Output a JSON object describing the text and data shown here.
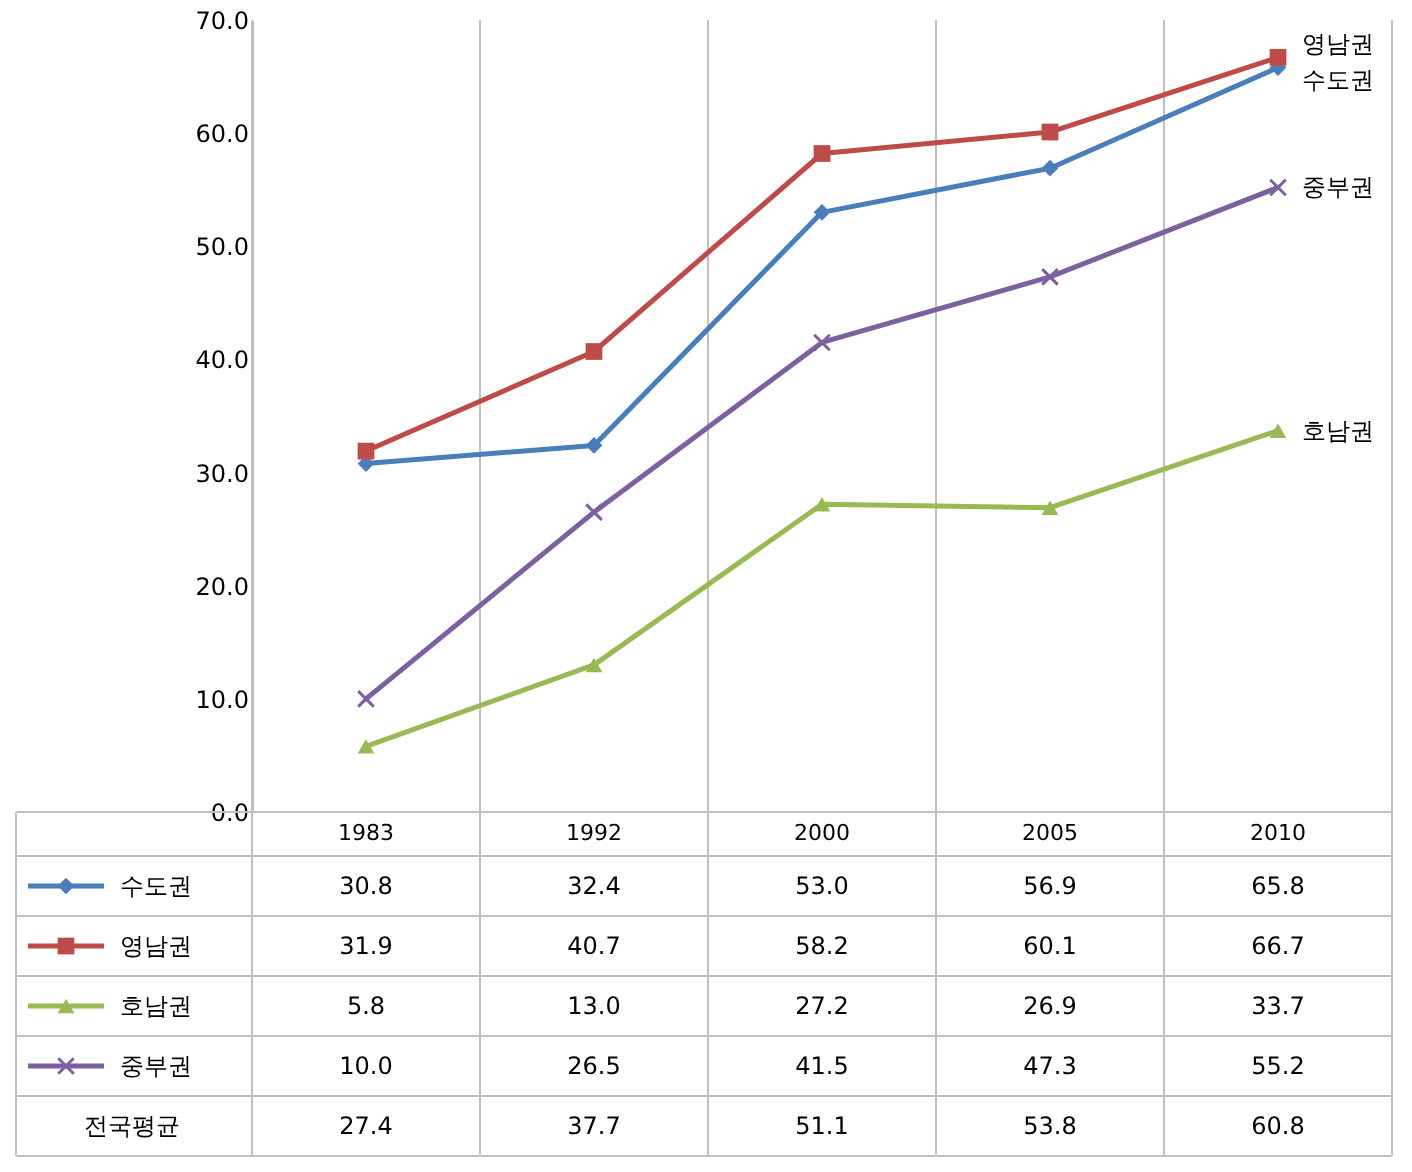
{
  "chart_data": {
    "type": "line",
    "categories": [
      "1983",
      "1992",
      "2000",
      "2005",
      "2010"
    ],
    "ylim": [
      0,
      70
    ],
    "yticks": [
      {
        "value": 0,
        "label": "0.0"
      },
      {
        "value": 10,
        "label": "10.0"
      },
      {
        "value": 20,
        "label": "20.0"
      },
      {
        "value": 30,
        "label": "30.0"
      },
      {
        "value": 40,
        "label": "40.0"
      },
      {
        "value": 50,
        "label": "50.0"
      },
      {
        "value": 60,
        "label": "60.0"
      },
      {
        "value": 70,
        "label": "70.0"
      }
    ],
    "legend": "bottom",
    "series": [
      {
        "name": "수도권",
        "color": "#4a7ebb",
        "marker": "diamond",
        "values": [
          30.8,
          32.4,
          53.0,
          56.9,
          65.8
        ],
        "value_labels": [
          "30.8",
          "32.4",
          "53.0",
          "56.9",
          "65.8"
        ]
      },
      {
        "name": "영남권",
        "color": "#be4b48",
        "marker": "square",
        "values": [
          31.9,
          40.7,
          58.2,
          60.1,
          66.7
        ],
        "value_labels": [
          "31.9",
          "40.7",
          "58.2",
          "60.1",
          "66.7"
        ]
      },
      {
        "name": "호남권",
        "color": "#98b954",
        "marker": "triangle",
        "values": [
          5.8,
          13.0,
          27.2,
          26.9,
          33.7
        ],
        "value_labels": [
          "5.8",
          "13.0",
          "27.2",
          "26.9",
          "33.7"
        ]
      },
      {
        "name": "중부권",
        "color": "#7d60a0",
        "marker": "cross",
        "values": [
          10.0,
          26.5,
          41.5,
          47.3,
          55.2
        ],
        "value_labels": [
          "10.0",
          "26.5",
          "41.5",
          "47.3",
          "55.2"
        ]
      }
    ],
    "annotations": [
      "전국평균",
      "27.4",
      "37.7",
      "51.1",
      "53.8",
      "60.8"
    ]
  }
}
